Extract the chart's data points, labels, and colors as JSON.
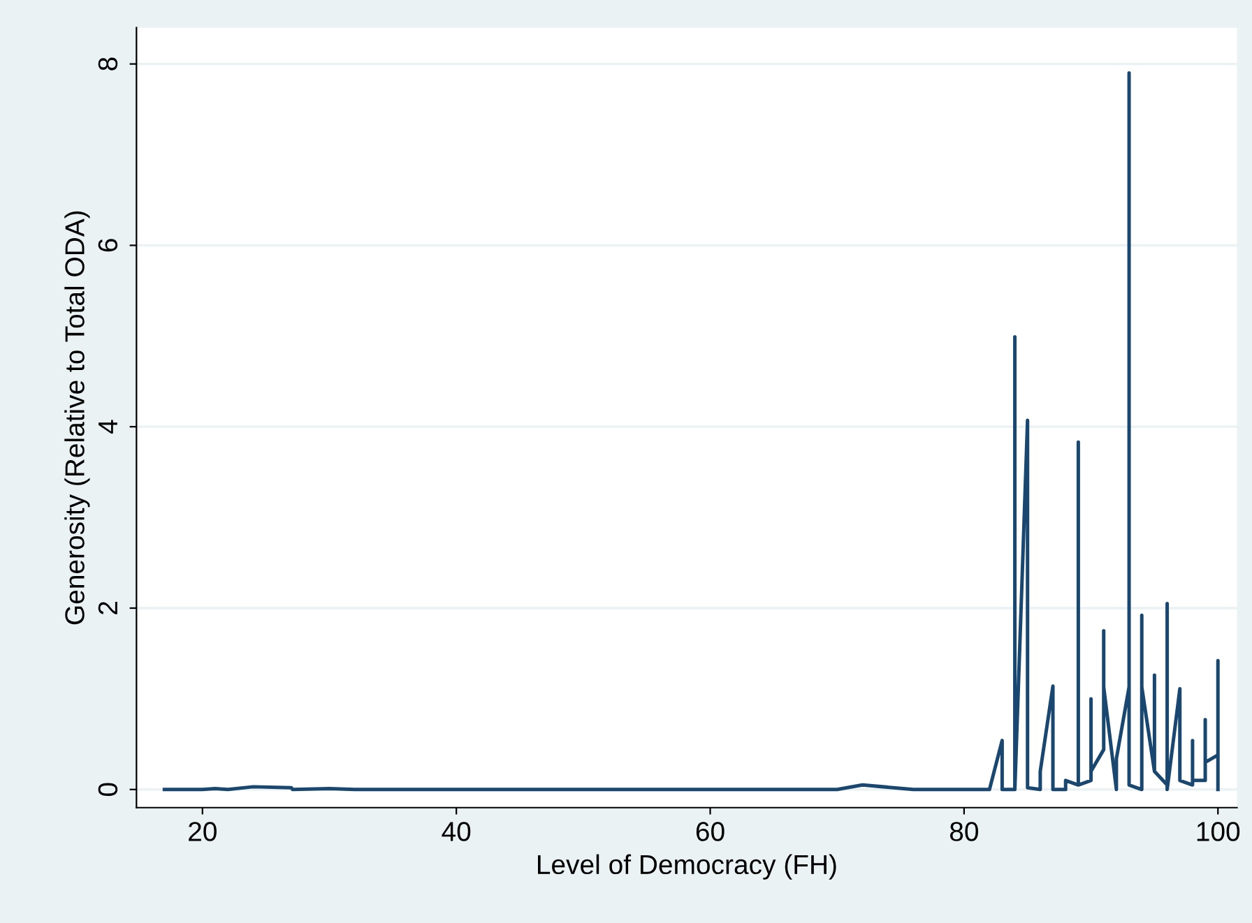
{
  "chart_data": {
    "type": "line",
    "xlabel": "Level of Democracy (FH)",
    "ylabel": "Generosity (Relative to Total ODA)",
    "x": [
      17,
      20,
      21,
      22,
      24,
      27,
      27.1,
      30,
      32,
      70,
      72,
      76,
      82,
      83,
      83,
      84,
      84,
      84,
      85,
      85,
      86,
      86,
      87,
      87,
      88,
      88,
      89,
      89,
      89,
      90,
      90,
      90,
      91,
      91,
      91,
      92,
      92,
      93,
      93,
      93,
      94,
      94,
      94,
      95,
      95,
      95,
      96,
      96,
      96,
      97,
      97,
      98,
      98,
      98,
      99,
      99,
      99,
      100,
      100,
      100
    ],
    "series": [
      {
        "color": "#1a476f",
        "values": [
          0,
          0,
          0.01,
          0,
          0.03,
          0.02,
          0,
          0.01,
          0,
          0,
          0.05,
          0,
          0,
          0.54,
          0,
          0,
          4.99,
          0,
          4.07,
          0.02,
          0,
          0.2,
          1.14,
          0,
          0,
          0.1,
          0.05,
          3.83,
          0.05,
          0.1,
          1.0,
          0.2,
          0.44,
          1.75,
          1.13,
          0,
          0.34,
          1.13,
          7.9,
          0.05,
          0,
          1.92,
          1.13,
          0.2,
          1.26,
          0.2,
          0.05,
          2.05,
          0,
          1.11,
          0.1,
          0.05,
          0.54,
          0.1,
          0.1,
          0.77,
          0.3,
          0.38,
          1.42,
          0
        ]
      }
    ],
    "xlim": [
      14.8,
      101.5
    ],
    "ylim": [
      -0.2,
      8.4
    ],
    "xticks": [
      20,
      40,
      60,
      80,
      100
    ],
    "yticks": [
      0,
      2,
      4,
      6,
      8
    ],
    "grid": "y",
    "legend": false
  }
}
